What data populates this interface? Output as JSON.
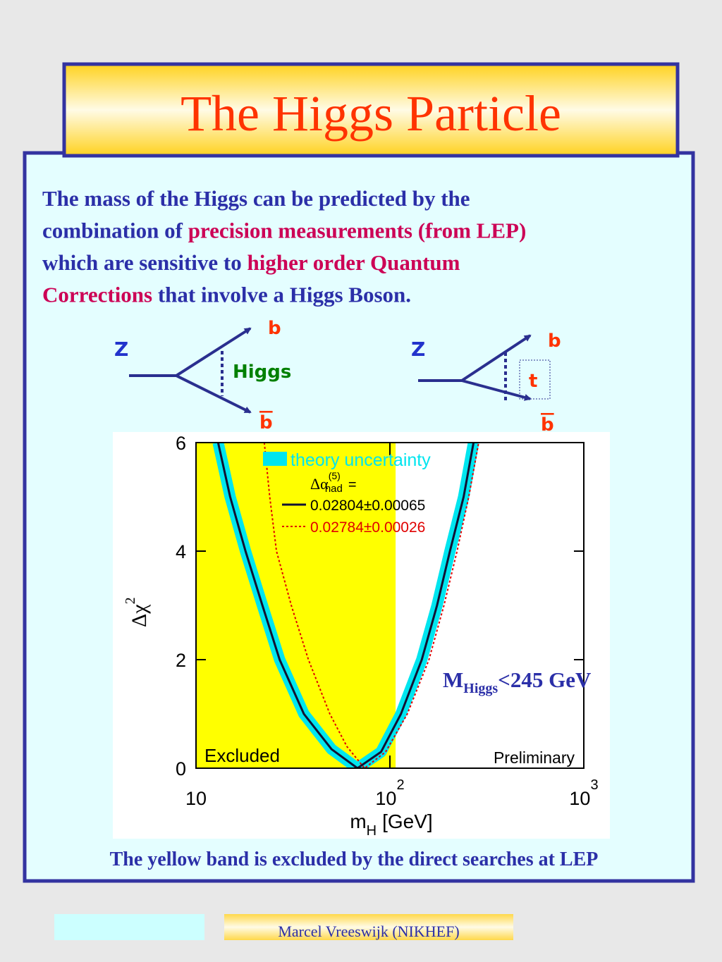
{
  "title": "The Higgs Particle",
  "intro": {
    "lines": [
      [
        {
          "text": "The mass of the Higgs can be predicted by the",
          "emphasis": false
        }
      ],
      [
        {
          "text": "combination of ",
          "emphasis": false
        },
        {
          "text": "precision measurements (from LEP)",
          "emphasis": true
        }
      ],
      [
        {
          "text": "which are sensitive to ",
          "emphasis": false
        },
        {
          "text": "higher order Quantum",
          "emphasis": true
        }
      ],
      [
        {
          "text": "Corrections",
          "emphasis": true
        },
        {
          "text": " that involve a Higgs Boson.",
          "emphasis": false
        }
      ]
    ]
  },
  "diagrams": [
    {
      "in": "Z",
      "out": "b",
      "out_bar": "b",
      "exchange": "Higgs"
    },
    {
      "in": "Z",
      "out": "b",
      "out_bar": "b",
      "exchange": "t"
    }
  ],
  "chart_data": {
    "type": "line",
    "x_scale": "log",
    "xlim": [
      10,
      1000
    ],
    "ylim": [
      0,
      6
    ],
    "xticks": [
      10,
      {
        "value": 100,
        "label": "10",
        "exponent": "2"
      },
      {
        "value": 1000,
        "label": "10",
        "exponent": "3"
      }
    ],
    "yticks": [
      0,
      2,
      4,
      6
    ],
    "xlabel": {
      "symbol": "m",
      "sub": "H",
      "unit": "[GeV]"
    },
    "ylabel": {
      "symbol": "Δχ",
      "sup": "2"
    },
    "excluded_region": {
      "x": [
        10,
        107
      ],
      "color": "#ffff00",
      "label": "Excluded"
    },
    "note": "Preliminary",
    "legend_title": {
      "symbol": "Δα",
      "sup": "(5)",
      "sub": "had",
      "suffix": "="
    },
    "series": [
      {
        "name": "theory uncertainty",
        "color": "#00e5ef",
        "style": "band",
        "x": [
          13,
          15,
          18,
          22,
          27,
          36,
          50,
          68,
          90,
          114,
          146,
          175,
          204,
          240,
          270
        ],
        "values": [
          6,
          5,
          4,
          3,
          2,
          1,
          0.35,
          0,
          0.3,
          1,
          2,
          3,
          4,
          5,
          6
        ]
      },
      {
        "name": "0.02804±0.00065",
        "color": "#111133",
        "style": "solid",
        "x": [
          13,
          15,
          18,
          22,
          27,
          36,
          50,
          68,
          90,
          114,
          146,
          175,
          204,
          240,
          270
        ],
        "values": [
          6,
          5,
          4,
          3,
          2,
          1,
          0.35,
          0,
          0.3,
          1,
          2,
          3,
          4,
          5,
          6
        ]
      },
      {
        "name": "0.02784±0.00026",
        "color": "#e00000",
        "style": "dotted",
        "x": [
          22.5,
          24,
          26,
          31,
          38,
          49,
          60,
          74,
          95,
          123,
          159,
          190,
          222,
          255,
          287
        ],
        "values": [
          6,
          5,
          4,
          3,
          2,
          1,
          0.4,
          0,
          0.3,
          1,
          2,
          3,
          4,
          5,
          6
        ]
      }
    ],
    "annotation": {
      "symbol": "M",
      "sub": "Higgs",
      "text": "<245 GeV"
    }
  },
  "caption": "The yellow band is excluded by the direct searches at LEP",
  "footer": "Marcel Vreeswijk (NIKHEF)"
}
